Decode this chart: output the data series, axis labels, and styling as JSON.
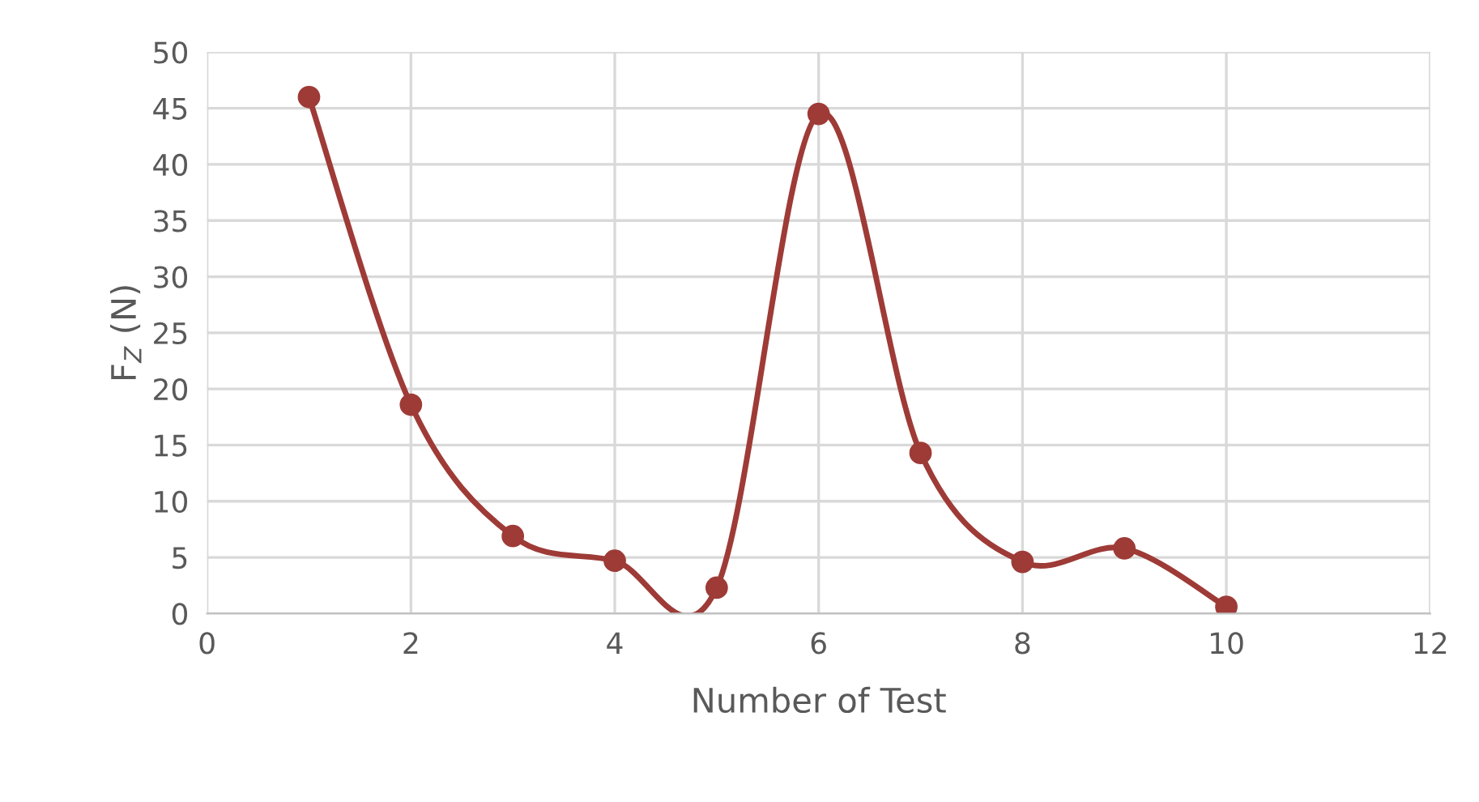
{
  "chart_data": {
    "type": "line",
    "xlabel": "Number of Test",
    "ylabel": "F$_{Z}$ (N)",
    "x": [
      1,
      2,
      3,
      4,
      5,
      6,
      7,
      8,
      9,
      10
    ],
    "series": [
      {
        "color": "#9e3b37",
        "values": [
          46,
          18.6,
          6.9,
          4.7,
          2.3,
          44.5,
          14.3,
          4.6,
          5.8,
          0.6
        ]
      }
    ],
    "xlim": [
      0,
      12
    ],
    "xticks": [
      0,
      2,
      4,
      6,
      8,
      10,
      12
    ],
    "ylim": [
      0,
      50
    ],
    "yticks": [
      0,
      5,
      10,
      15,
      20,
      25,
      30,
      35,
      40,
      45,
      50
    ],
    "grid": true,
    "marker": "circle",
    "line_style": "solid"
  }
}
